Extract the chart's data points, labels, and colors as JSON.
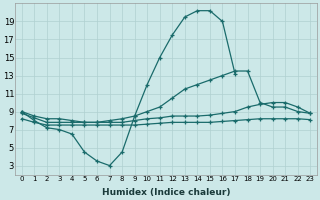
{
  "xlabel": "Humidex (Indice chaleur)",
  "bg_color": "#cce8e8",
  "grid_color": "#b0d0d0",
  "line_color": "#1a6b6b",
  "x_values": [
    0,
    1,
    2,
    3,
    4,
    5,
    6,
    7,
    8,
    9,
    10,
    11,
    12,
    13,
    14,
    15,
    16,
    17,
    18,
    19,
    20,
    21,
    22,
    23
  ],
  "series1": [
    9,
    8,
    7.2,
    7,
    6.5,
    4.5,
    3.5,
    3,
    4.5,
    8.5,
    12,
    15,
    17.5,
    19.5,
    20.2,
    20.2,
    19,
    13.2,
    null,
    null,
    null,
    null,
    null,
    null
  ],
  "series2": [
    9,
    8.5,
    8.2,
    8.2,
    8,
    7.8,
    7.8,
    8,
    8.2,
    8.5,
    9,
    9.5,
    10.5,
    11.5,
    12,
    12.5,
    13,
    13.5,
    13.5,
    10,
    9.5,
    9.5,
    9,
    8.8
  ],
  "series3": [
    8.8,
    8.3,
    7.8,
    7.8,
    7.8,
    7.8,
    7.8,
    7.8,
    7.8,
    8,
    8.2,
    8.3,
    8.5,
    8.5,
    8.5,
    8.6,
    8.8,
    9,
    9.5,
    9.8,
    10,
    10,
    9.5,
    8.8
  ],
  "series4": [
    8.2,
    7.8,
    7.5,
    7.5,
    7.5,
    7.5,
    7.5,
    7.5,
    7.5,
    7.5,
    7.6,
    7.7,
    7.8,
    7.8,
    7.8,
    7.8,
    7.9,
    8.0,
    8.1,
    8.2,
    8.2,
    8.2,
    8.2,
    8.1
  ],
  "ylim": [
    2,
    21
  ],
  "yticks": [
    3,
    5,
    7,
    9,
    11,
    13,
    15,
    17,
    19
  ],
  "xticks": [
    0,
    1,
    2,
    3,
    4,
    5,
    6,
    7,
    8,
    9,
    10,
    11,
    12,
    13,
    14,
    15,
    16,
    17,
    18,
    19,
    20,
    21,
    22,
    23
  ]
}
